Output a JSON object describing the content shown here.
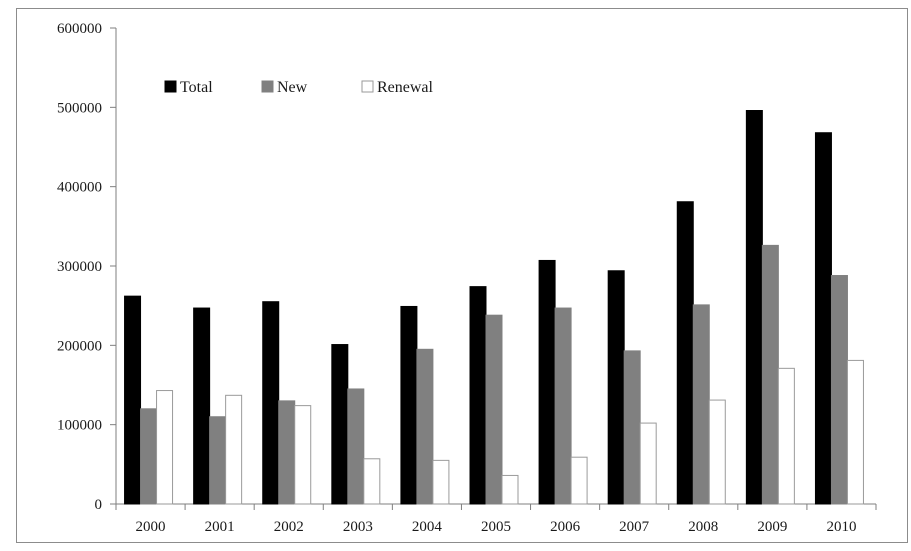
{
  "chart_data": {
    "type": "bar",
    "title": "",
    "xlabel": "",
    "ylabel": "",
    "categories": [
      "2000",
      "2001",
      "2002",
      "2003",
      "2004",
      "2005",
      "2006",
      "2007",
      "2008",
      "2009",
      "2010"
    ],
    "series": [
      {
        "name": "Total",
        "color": "#000000",
        "values": [
          262000,
          247000,
          255000,
          201000,
          249000,
          274000,
          307000,
          294000,
          381000,
          496000,
          468000
        ]
      },
      {
        "name": "New",
        "color": "#808080",
        "values": [
          120000,
          110000,
          130000,
          145000,
          195000,
          238000,
          247000,
          193000,
          251000,
          326000,
          288000
        ]
      },
      {
        "name": "Renewal",
        "color": "#ffffff",
        "values": [
          143000,
          137000,
          124000,
          57000,
          55000,
          36000,
          59000,
          102000,
          131000,
          171000,
          181000
        ]
      }
    ],
    "ylim": [
      0,
      600000
    ],
    "yticks": [
      "0",
      "100000",
      "200000",
      "300000",
      "400000",
      "500000",
      "600000"
    ],
    "grid": false,
    "legend_position": "top-left"
  }
}
